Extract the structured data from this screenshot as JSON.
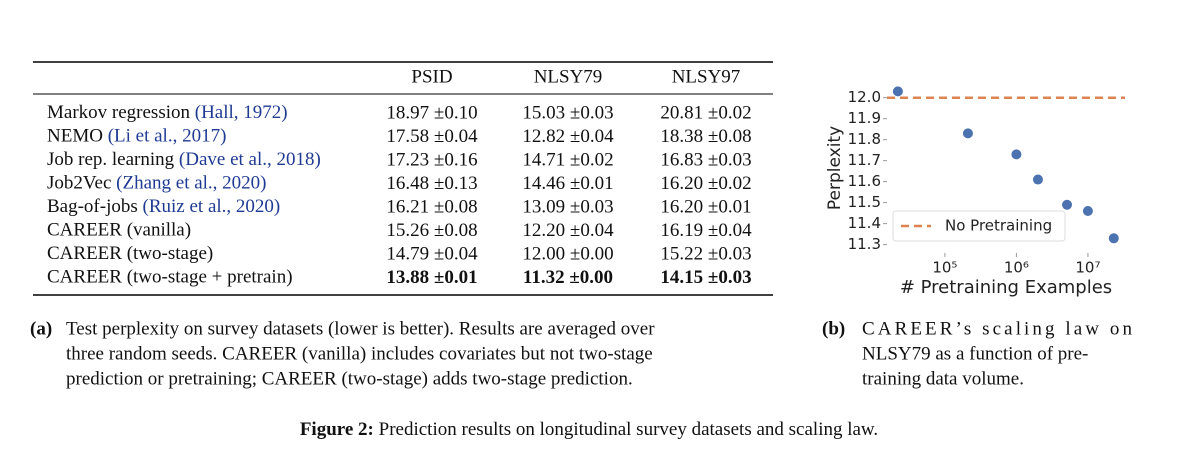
{
  "table": {
    "header": [
      "PSID",
      "NLSY79",
      "NLSY97"
    ],
    "rows": [
      {
        "name": "Markov regression",
        "cite": "(Hall, 1972)",
        "cells": [
          "18.97 ±0.10",
          "15.03 ±0.03",
          "20.81 ±0.02"
        ]
      },
      {
        "name": "NEMO",
        "cite": "(Li et al., 2017)",
        "cells": [
          "17.58 ±0.04",
          "12.82 ±0.04",
          "18.38 ±0.08"
        ]
      },
      {
        "name": "Job rep. learning",
        "cite": "(Dave et al., 2018)",
        "cells": [
          "17.23 ±0.16",
          "14.71 ±0.02",
          "16.83 ±0.03"
        ]
      },
      {
        "name": "Job2Vec",
        "cite": "(Zhang et al., 2020)",
        "cells": [
          "16.48 ±0.13",
          "14.46 ±0.01",
          "16.20 ±0.02"
        ]
      },
      {
        "name": "Bag-of-jobs",
        "cite": "(Ruiz et al., 2020)",
        "cells": [
          "16.21 ±0.08",
          "13.09 ±0.03",
          "16.20 ±0.01"
        ]
      },
      {
        "name": "CAREER (vanilla)",
        "cells": [
          "15.26 ±0.08",
          "12.20 ±0.04",
          "16.19 ±0.04"
        ]
      },
      {
        "name": "CAREER (two-stage)",
        "cells": [
          "14.79 ±0.04",
          "12.00 ±0.00",
          "15.22 ±0.03"
        ]
      },
      {
        "name": "CAREER (two-stage + pretrain)",
        "cells": [
          "13.88 ±0.01",
          "11.32 ±0.00",
          "14.15 ±0.03"
        ],
        "bold": true
      }
    ]
  },
  "chart_data": {
    "type": "scatter",
    "xlabel": "# Pretraining Examples",
    "ylabel": "Perplexity",
    "log_x": true,
    "x": [
      22000,
      210000,
      1000000,
      2000000,
      5100000,
      10000000,
      23000000
    ],
    "series": [
      {
        "color": "#4c72b0",
        "values": [
          12.03,
          11.83,
          11.73,
          11.61,
          11.49,
          11.46,
          11.33
        ]
      }
    ],
    "reference": {
      "name": "No Pretraining",
      "value": 12.0,
      "color": "#dd8452"
    },
    "xlim": [
      15500,
      33000000
    ],
    "ylim": [
      11.26,
      12.07
    ],
    "xticks": [
      {
        "value": 100000,
        "label": "10⁵"
      },
      {
        "value": 1000000,
        "label": "10⁶"
      },
      {
        "value": 10000000,
        "label": "10⁷"
      }
    ],
    "yticks": [
      11.3,
      11.4,
      11.5,
      11.6,
      11.7,
      11.8,
      11.9,
      {
        "value": 12.0,
        "label": "12.0"
      }
    ],
    "legend": "lower left"
  },
  "captions": {
    "a": {
      "label": "(a)",
      "lines": [
        "Test perplexity on survey datasets (lower is better). Results are averaged over",
        "three random seeds. CAREER (vanilla) includes covariates but not two-stage",
        "prediction or pretraining; CAREER (two-stage) adds two-stage prediction."
      ]
    },
    "b": {
      "label": "(b)",
      "lines": [
        "CAREER’s scaling law on",
        "NLSY79 as a function of pre-",
        "training data volume."
      ]
    },
    "figure": {
      "label": "Figure 2:",
      "text": "Prediction results on longitudinal survey datasets and scaling law."
    }
  }
}
